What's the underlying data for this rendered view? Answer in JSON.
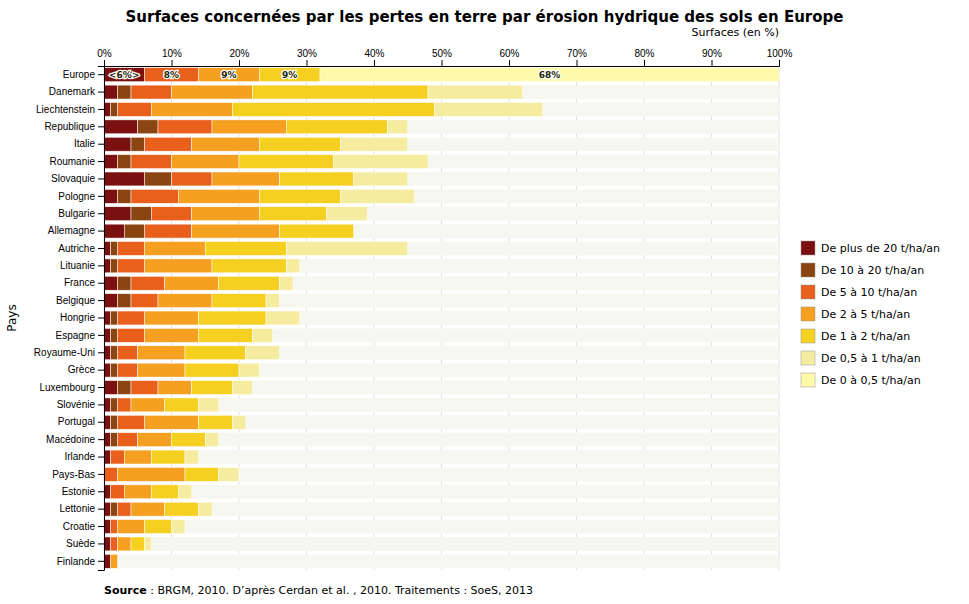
{
  "chart_data": {
    "type": "bar",
    "orientation": "horizontal",
    "stacked": true,
    "grid": true,
    "legend": "right",
    "title": "Surfaces concernées par les pertes en terre par érosion hydrique des sols en Europe",
    "ylabel": "Pays",
    "xlabel": "Surfaces (en %)",
    "source": {
      "bold": "Source",
      "text": " : BRGM, 2010. D’après Cerdan et al. , 2010. Traitements : SoeS, 2013"
    },
    "categories": [
      "Europe",
      "Danemark",
      "Liechtenstein",
      "Republique",
      "Italie",
      "Roumanie",
      "Slovaquie",
      "Pologne",
      "Bulgarie",
      "Allemagne",
      "Autriche",
      "Lituanie",
      "France",
      "Belgique",
      "Hongrie",
      "Espagne",
      "Royaume-Uni",
      "Grèce",
      "Luxembourg",
      "Slovénie",
      "Portugal",
      "Macédoine",
      "Irlande",
      "Pays-Bas",
      "Estonie",
      "Lettonie",
      "Croatie",
      "Suède",
      "Finlande"
    ],
    "series": [
      {
        "name": "De plus de 20 t/ha/an",
        "color": "#7B1010",
        "values": [
          6,
          2,
          1,
          5,
          4,
          2,
          6,
          2,
          4,
          3,
          1,
          1,
          2,
          2,
          1,
          1,
          1,
          1,
          2,
          1,
          1,
          1,
          1,
          0,
          1,
          1,
          1,
          1,
          1
        ]
      },
      {
        "name": "De 10 à 20 t/ha/an",
        "color": "#8B4513",
        "values": [
          0,
          2,
          1,
          3,
          2,
          2,
          4,
          2,
          3,
          3,
          1,
          1,
          2,
          2,
          1,
          1,
          1,
          1,
          2,
          1,
          1,
          1,
          0,
          0,
          0,
          1,
          0,
          0,
          0
        ]
      },
      {
        "name": "De 5 à 10 t/ha/an",
        "color": "#E8601C",
        "values": [
          8,
          6,
          5,
          8,
          7,
          6,
          6,
          7,
          6,
          7,
          4,
          4,
          5,
          4,
          4,
          4,
          3,
          3,
          4,
          2,
          4,
          3,
          2,
          2,
          2,
          2,
          1,
          1,
          0
        ]
      },
      {
        "name": "De 2 à 5 t/ha/an",
        "color": "#F5A020",
        "values": [
          9,
          12,
          12,
          11,
          10,
          10,
          10,
          12,
          10,
          13,
          9,
          10,
          8,
          8,
          8,
          8,
          7,
          7,
          5,
          5,
          8,
          5,
          4,
          10,
          4,
          5,
          4,
          2,
          1
        ]
      },
      {
        "name": "De 1 à 2 t/ha/an",
        "color": "#F5D020",
        "values": [
          9,
          26,
          30,
          15,
          12,
          14,
          11,
          12,
          10,
          11,
          12,
          11,
          9,
          8,
          10,
          8,
          9,
          8,
          6,
          5,
          5,
          5,
          5,
          5,
          4,
          5,
          4,
          2,
          0
        ]
      },
      {
        "name": "De 0,5 à 1 t/ha/an",
        "color": "#F5ECA0",
        "values": [
          0,
          14,
          16,
          3,
          10,
          14,
          8,
          11,
          6,
          0,
          18,
          2,
          2,
          2,
          5,
          3,
          5,
          3,
          3,
          3,
          2,
          2,
          2,
          3,
          2,
          2,
          2,
          1,
          0
        ]
      },
      {
        "name": "De 0 à 0,5 t/ha/an",
        "color": "#FFFAAA",
        "values": [
          68,
          0,
          0,
          0,
          0,
          0,
          0,
          0,
          0,
          0,
          0,
          0,
          0,
          0,
          0,
          0,
          0,
          0,
          0,
          0,
          0,
          0,
          0,
          0,
          0,
          0,
          0,
          0,
          0
        ]
      }
    ],
    "xlim": [
      0,
      100
    ],
    "xticks": [
      {
        "value": 0,
        "label": "0%"
      },
      {
        "value": 10,
        "label": "10%"
      },
      {
        "value": 20,
        "label": "20%"
      },
      {
        "value": 30,
        "label": "30%"
      },
      {
        "value": 40,
        "label": "40%"
      },
      {
        "value": 50,
        "label": "50%"
      },
      {
        "value": 60,
        "label": "60%"
      },
      {
        "value": 70,
        "label": "70%"
      },
      {
        "value": 80,
        "label": "80%"
      },
      {
        "value": 90,
        "label": "90%"
      },
      {
        "value": 100,
        "label": "100%"
      }
    ],
    "annotations": [
      {
        "text": "<6%>",
        "x": 3,
        "y": "Europe"
      },
      {
        "text": "8%",
        "x": 10,
        "y": "Europe"
      },
      {
        "text": "9%",
        "x": 18.5,
        "y": "Europe"
      },
      {
        "text": "9%",
        "x": 27.5,
        "y": "Europe"
      },
      {
        "text": "68%",
        "x": 66,
        "y": "Europe"
      }
    ]
  }
}
